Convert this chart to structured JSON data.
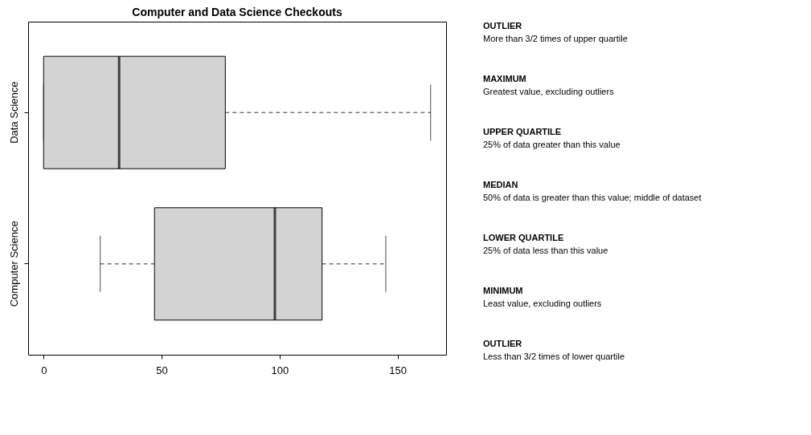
{
  "chart_data": [
    {
      "type": "box",
      "title": "Computer and Data Science Checkouts",
      "orientation": "horizontal",
      "categories": [
        "Data Science",
        "Computer Science"
      ],
      "xlim": [
        -6.56,
        170.56
      ],
      "xticks": [
        0,
        50,
        100,
        150
      ],
      "grid": false,
      "series": [
        {
          "color": "#d3d3d3",
          "boxes": [
            {
              "low": 0,
              "q1": 0,
              "median": 32,
              "q3": 77,
              "high": 164
            },
            {
              "low": 24,
              "q1": 47,
              "median": 98,
              "q3": 118,
              "high": 145
            }
          ]
        }
      ]
    },
    {
      "type": "other",
      "annotations": [
        "OUTLIER",
        "More than 3/2 times of upper quartile",
        "MAXIMUM",
        "Greatest value, excluding outliers",
        "UPPER QUARTILE",
        "25% of data greater than this value",
        "MEDIAN",
        "50% of data is greater than this value; middle of dataset",
        "LOWER QUARTILE",
        "25% of data less than this value",
        "MINIMUM",
        "Least value, excluding outliers",
        "OUTLIER",
        "Less than 3/2 times of lower quartile"
      ]
    }
  ]
}
